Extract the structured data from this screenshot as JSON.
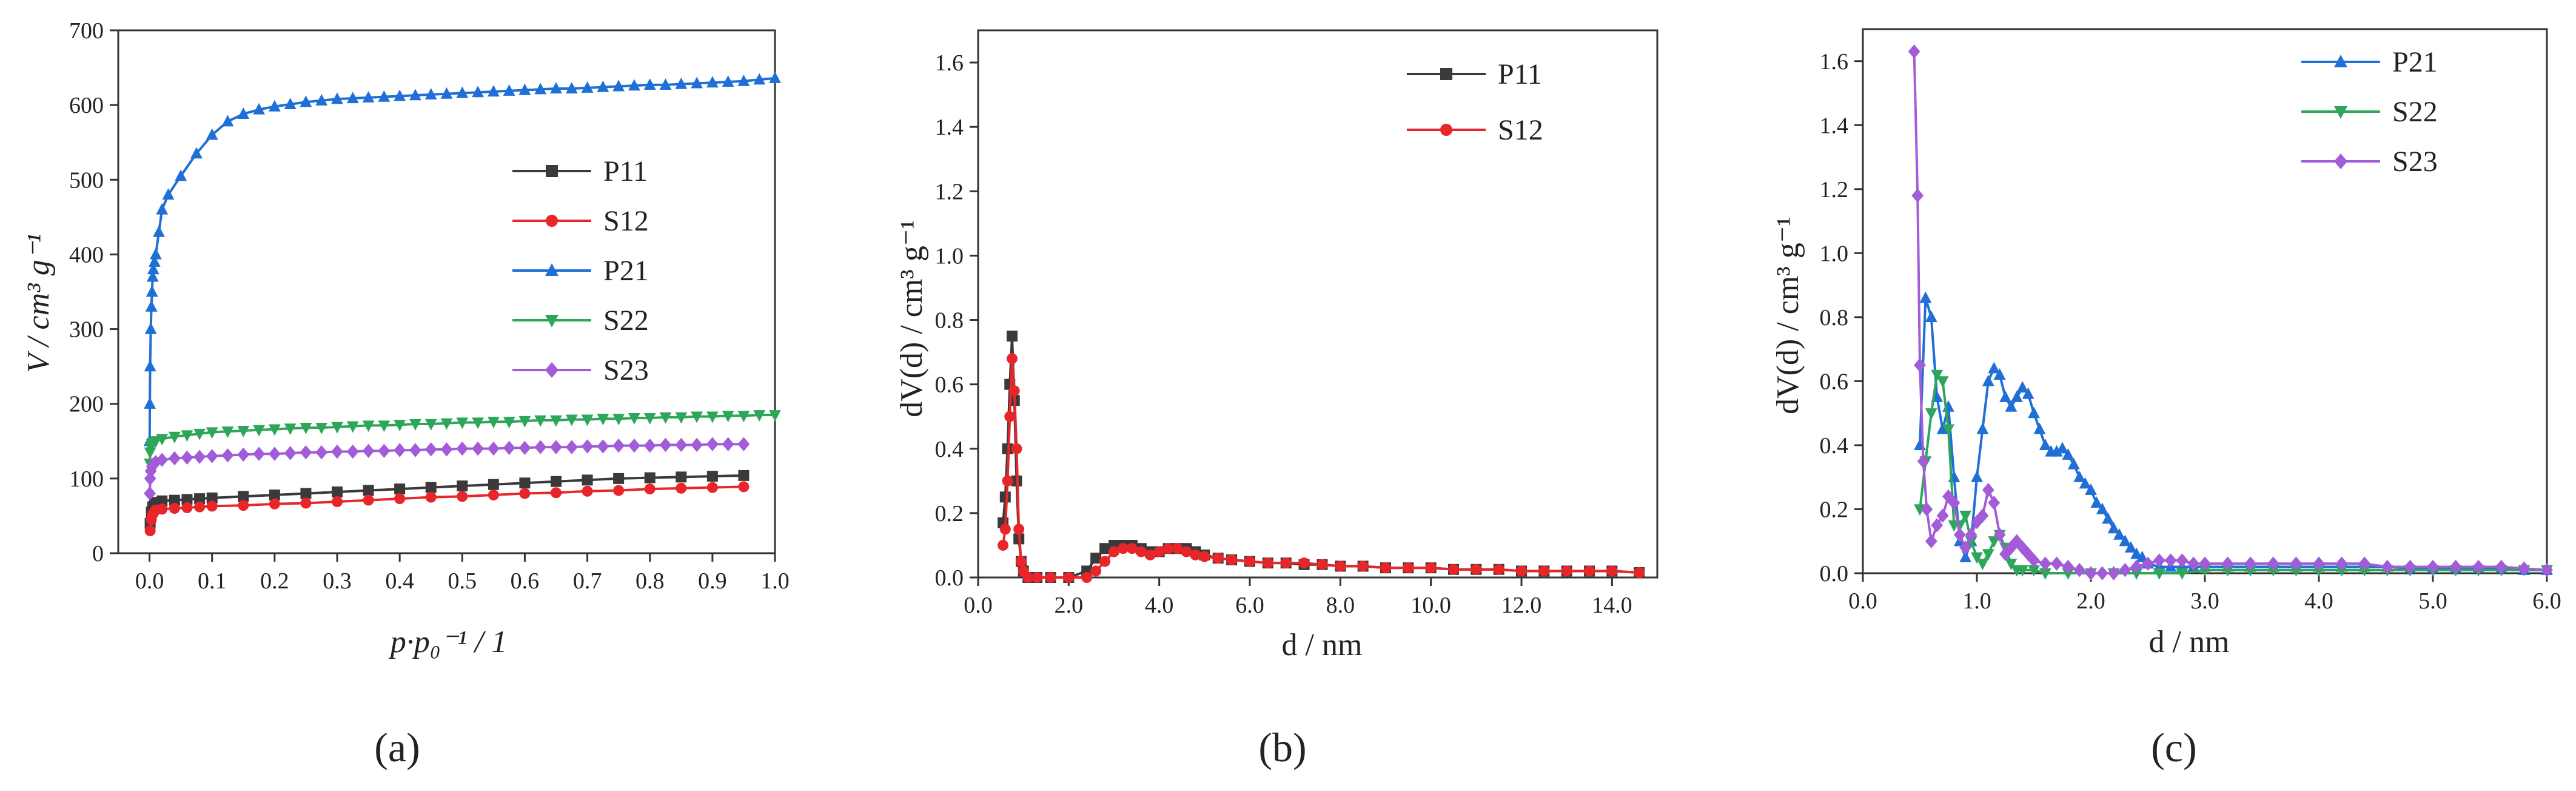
{
  "chart_data": [
    {
      "type": "line",
      "panel_label": "(a)",
      "xlabel": "p·p₀⁻¹ / 1",
      "ylabel": "V / cm³ g⁻¹",
      "xlim": [
        -0.05,
        1.0
      ],
      "ylim": [
        0,
        700
      ],
      "xticks": [
        "0.0",
        "0.1",
        "0.2",
        "0.3",
        "0.4",
        "0.5",
        "0.6",
        "0.7",
        "0.8",
        "0.9",
        "1.0"
      ],
      "yticks": [
        "0",
        "100",
        "200",
        "300",
        "400",
        "500",
        "600",
        "700"
      ],
      "legend": "center-right",
      "series": [
        {
          "name": "P11",
          "color": "#3a3a3a",
          "marker": "square",
          "x": [
            0.001,
            0.003,
            0.005,
            0.008,
            0.01,
            0.02,
            0.04,
            0.06,
            0.08,
            0.1,
            0.15,
            0.2,
            0.25,
            0.3,
            0.35,
            0.4,
            0.45,
            0.5,
            0.55,
            0.6,
            0.65,
            0.7,
            0.75,
            0.8,
            0.85,
            0.9,
            0.95
          ],
          "y": [
            40,
            55,
            62,
            66,
            68,
            70,
            71,
            72,
            73,
            74,
            76,
            78,
            80,
            82,
            84,
            86,
            88,
            90,
            92,
            94,
            96,
            98,
            100,
            101,
            102,
            103,
            104
          ]
        },
        {
          "name": "S12",
          "color": "#e8262a",
          "marker": "circle",
          "x": [
            0.001,
            0.003,
            0.005,
            0.008,
            0.01,
            0.02,
            0.04,
            0.06,
            0.08,
            0.1,
            0.15,
            0.2,
            0.25,
            0.3,
            0.35,
            0.4,
            0.45,
            0.5,
            0.55,
            0.6,
            0.65,
            0.7,
            0.75,
            0.8,
            0.85,
            0.9,
            0.95
          ],
          "y": [
            30,
            45,
            52,
            56,
            58,
            59,
            60,
            61,
            62,
            63,
            64,
            66,
            67,
            69,
            71,
            73,
            75,
            76,
            78,
            80,
            81,
            83,
            84,
            86,
            87,
            88,
            89
          ]
        },
        {
          "name": "P21",
          "color": "#1f6fd6",
          "marker": "triangle-up",
          "x": [
            0.0002,
            0.0005,
            0.001,
            0.002,
            0.003,
            0.004,
            0.005,
            0.006,
            0.008,
            0.01,
            0.015,
            0.02,
            0.03,
            0.05,
            0.075,
            0.1,
            0.125,
            0.15,
            0.175,
            0.2,
            0.225,
            0.25,
            0.275,
            0.3,
            0.325,
            0.35,
            0.375,
            0.4,
            0.425,
            0.45,
            0.475,
            0.5,
            0.525,
            0.55,
            0.575,
            0.6,
            0.625,
            0.65,
            0.675,
            0.7,
            0.725,
            0.75,
            0.775,
            0.8,
            0.825,
            0.85,
            0.875,
            0.9,
            0.925,
            0.95,
            0.975,
            1.0
          ],
          "y": [
            150,
            200,
            250,
            300,
            330,
            350,
            370,
            380,
            390,
            400,
            430,
            460,
            480,
            505,
            535,
            560,
            578,
            588,
            594,
            598,
            601,
            604,
            606,
            608,
            609,
            610,
            611,
            612,
            613,
            614,
            615,
            616,
            617,
            618,
            619,
            620,
            621,
            622,
            622,
            623,
            624,
            625,
            626,
            627,
            627,
            628,
            629,
            630,
            631,
            632,
            634,
            636
          ]
        },
        {
          "name": "S22",
          "color": "#2ea65a",
          "marker": "triangle-down",
          "x": [
            0.0005,
            0.001,
            0.002,
            0.004,
            0.006,
            0.01,
            0.02,
            0.04,
            0.06,
            0.08,
            0.1,
            0.125,
            0.15,
            0.175,
            0.2,
            0.225,
            0.25,
            0.275,
            0.3,
            0.325,
            0.35,
            0.375,
            0.4,
            0.425,
            0.45,
            0.475,
            0.5,
            0.525,
            0.55,
            0.575,
            0.6,
            0.625,
            0.65,
            0.675,
            0.7,
            0.725,
            0.75,
            0.775,
            0.8,
            0.825,
            0.85,
            0.875,
            0.9,
            0.925,
            0.95,
            0.975,
            1.0
          ],
          "y": [
            120,
            135,
            142,
            146,
            148,
            150,
            153,
            156,
            158,
            160,
            162,
            163,
            164,
            165,
            166,
            167,
            168,
            168,
            169,
            170,
            171,
            171,
            172,
            173,
            173,
            174,
            175,
            175,
            176,
            176,
            177,
            178,
            178,
            179,
            179,
            180,
            180,
            181,
            181,
            182,
            182,
            183,
            183,
            184,
            184,
            185,
            185
          ]
        },
        {
          "name": "S23",
          "color": "#a25cd8",
          "marker": "diamond",
          "x": [
            0.0005,
            0.001,
            0.002,
            0.004,
            0.006,
            0.01,
            0.02,
            0.04,
            0.06,
            0.08,
            0.1,
            0.125,
            0.15,
            0.175,
            0.2,
            0.225,
            0.25,
            0.275,
            0.3,
            0.325,
            0.35,
            0.375,
            0.4,
            0.425,
            0.45,
            0.475,
            0.5,
            0.525,
            0.55,
            0.575,
            0.6,
            0.625,
            0.65,
            0.675,
            0.7,
            0.725,
            0.75,
            0.775,
            0.8,
            0.825,
            0.85,
            0.875,
            0.9,
            0.925,
            0.95
          ],
          "y": [
            80,
            100,
            110,
            116,
            119,
            122,
            125,
            127,
            128,
            129,
            130,
            131,
            132,
            133,
            133,
            134,
            135,
            135,
            136,
            136,
            137,
            137,
            138,
            138,
            139,
            139,
            140,
            140,
            140,
            141,
            141,
            142,
            142,
            142,
            143,
            143,
            144,
            144,
            144,
            145,
            145,
            145,
            146,
            146,
            146
          ]
        }
      ]
    },
    {
      "type": "line",
      "panel_label": "(b)",
      "xlabel": "d / nm",
      "ylabel": "dV(d) / cm³ g⁻¹",
      "xlim": [
        0,
        15
      ],
      "ylim": [
        0,
        1.7
      ],
      "xticks": [
        "0.0",
        "2.0",
        "4.0",
        "6.0",
        "8.0",
        "10.0",
        "12.0",
        "14.0"
      ],
      "yticks": [
        "0.0",
        "0.2",
        "0.4",
        "0.6",
        "0.8",
        "1.0",
        "1.2",
        "1.4",
        "1.6"
      ],
      "legend": "top-right",
      "series": [
        {
          "name": "P11",
          "color": "#3a3a3a",
          "marker": "square",
          "x": [
            0.55,
            0.6,
            0.65,
            0.7,
            0.75,
            0.8,
            0.85,
            0.9,
            0.95,
            1.0,
            1.1,
            1.3,
            1.6,
            2.0,
            2.4,
            2.6,
            2.8,
            3.0,
            3.2,
            3.4,
            3.6,
            3.8,
            4.0,
            4.2,
            4.4,
            4.6,
            4.8,
            5.0,
            5.3,
            5.6,
            6.0,
            6.4,
            6.8,
            7.2,
            7.6,
            8.0,
            8.5,
            9.0,
            9.5,
            10.0,
            10.5,
            11.0,
            11.5,
            12.0,
            12.5,
            13.0,
            13.5,
            14.0,
            14.6
          ],
          "y": [
            0.17,
            0.25,
            0.4,
            0.6,
            0.75,
            0.55,
            0.3,
            0.12,
            0.05,
            0.02,
            0.0,
            0.0,
            0.0,
            0.0,
            0.02,
            0.06,
            0.09,
            0.1,
            0.1,
            0.1,
            0.09,
            0.08,
            0.08,
            0.09,
            0.09,
            0.09,
            0.08,
            0.07,
            0.06,
            0.055,
            0.05,
            0.045,
            0.045,
            0.04,
            0.04,
            0.035,
            0.035,
            0.03,
            0.03,
            0.03,
            0.025,
            0.025,
            0.025,
            0.02,
            0.02,
            0.02,
            0.02,
            0.02,
            0.015
          ]
        },
        {
          "name": "S12",
          "color": "#e8262a",
          "marker": "circle",
          "x": [
            0.55,
            0.6,
            0.65,
            0.7,
            0.75,
            0.8,
            0.85,
            0.9,
            0.95,
            1.0,
            1.1,
            1.3,
            1.6,
            2.0,
            2.4,
            2.6,
            2.8,
            3.0,
            3.2,
            3.4,
            3.6,
            3.8,
            4.0,
            4.2,
            4.4,
            4.6,
            4.8,
            5.0,
            5.3,
            5.6,
            6.0,
            6.4,
            6.8,
            7.2,
            7.6,
            8.0,
            8.5,
            9.0,
            9.5,
            10.0,
            10.5,
            11.0,
            11.5,
            12.0,
            12.5,
            13.0,
            13.5,
            14.0,
            14.6
          ],
          "y": [
            0.1,
            0.15,
            0.3,
            0.5,
            0.68,
            0.58,
            0.4,
            0.15,
            0.05,
            0.02,
            0.0,
            0.0,
            0.0,
            0.0,
            0.0,
            0.02,
            0.05,
            0.08,
            0.09,
            0.09,
            0.08,
            0.07,
            0.08,
            0.09,
            0.09,
            0.08,
            0.07,
            0.065,
            0.06,
            0.055,
            0.05,
            0.045,
            0.045,
            0.045,
            0.04,
            0.035,
            0.035,
            0.03,
            0.03,
            0.03,
            0.025,
            0.025,
            0.025,
            0.02,
            0.02,
            0.02,
            0.02,
            0.02,
            0.015
          ]
        }
      ]
    },
    {
      "type": "line",
      "panel_label": "(c)",
      "xlabel": "d / nm",
      "ylabel": "dV(d) / cm³ g⁻¹",
      "xlim": [
        0,
        6
      ],
      "ylim": [
        0,
        1.7
      ],
      "xticks": [
        "0.0",
        "1.0",
        "2.0",
        "3.0",
        "4.0",
        "5.0",
        "6.0"
      ],
      "yticks": [
        "0.0",
        "0.2",
        "0.4",
        "0.6",
        "0.8",
        "1.0",
        "1.2",
        "1.4",
        "1.6"
      ],
      "legend": "top-right",
      "series": [
        {
          "name": "P21",
          "color": "#1f6fd6",
          "marker": "triangle-up",
          "x": [
            0.5,
            0.55,
            0.6,
            0.65,
            0.7,
            0.75,
            0.8,
            0.85,
            0.9,
            0.95,
            1.0,
            1.05,
            1.1,
            1.15,
            1.2,
            1.25,
            1.3,
            1.35,
            1.4,
            1.45,
            1.5,
            1.55,
            1.6,
            1.65,
            1.7,
            1.75,
            1.8,
            1.85,
            1.9,
            1.95,
            2.0,
            2.05,
            2.1,
            2.15,
            2.2,
            2.25,
            2.3,
            2.35,
            2.4,
            2.45,
            2.5,
            2.6,
            2.7,
            2.8,
            2.9,
            3.0,
            3.2,
            3.4,
            3.6,
            3.8,
            4.0,
            4.2,
            4.4,
            4.6,
            4.8,
            5.0,
            5.2,
            5.4,
            5.6,
            5.8,
            6.0
          ],
          "y": [
            0.4,
            0.86,
            0.8,
            0.55,
            0.45,
            0.52,
            0.3,
            0.1,
            0.05,
            0.1,
            0.3,
            0.45,
            0.6,
            0.64,
            0.62,
            0.55,
            0.52,
            0.55,
            0.58,
            0.56,
            0.5,
            0.45,
            0.4,
            0.38,
            0.38,
            0.39,
            0.37,
            0.34,
            0.3,
            0.28,
            0.26,
            0.22,
            0.2,
            0.17,
            0.14,
            0.12,
            0.1,
            0.08,
            0.06,
            0.05,
            0.03,
            0.02,
            0.02,
            0.02,
            0.02,
            0.02,
            0.02,
            0.02,
            0.02,
            0.02,
            0.02,
            0.02,
            0.02,
            0.02,
            0.015,
            0.015,
            0.015,
            0.015,
            0.015,
            0.01,
            0.01
          ]
        },
        {
          "name": "S22",
          "color": "#2ea65a",
          "marker": "triangle-down",
          "x": [
            0.5,
            0.55,
            0.6,
            0.65,
            0.7,
            0.75,
            0.8,
            0.85,
            0.9,
            0.95,
            1.0,
            1.05,
            1.1,
            1.15,
            1.2,
            1.25,
            1.3,
            1.35,
            1.4,
            1.5,
            1.6,
            1.8,
            2.0,
            2.2,
            2.4,
            2.6,
            2.8,
            3.0,
            3.2,
            3.4,
            3.6,
            3.8,
            4.0,
            4.2,
            4.4,
            4.6,
            4.8,
            5.0,
            5.2,
            5.4,
            5.6,
            5.8,
            6.0
          ],
          "y": [
            0.2,
            0.35,
            0.5,
            0.62,
            0.6,
            0.45,
            0.15,
            0.15,
            0.18,
            0.1,
            0.05,
            0.03,
            0.06,
            0.1,
            0.12,
            0.08,
            0.03,
            0.01,
            0.01,
            0.01,
            0.0,
            0.0,
            0.0,
            0.0,
            0.0,
            0.0,
            0.0,
            0.01,
            0.01,
            0.01,
            0.01,
            0.01,
            0.01,
            0.01,
            0.01,
            0.01,
            0.01,
            0.01,
            0.01,
            0.01,
            0.01,
            0.01,
            0.01
          ]
        },
        {
          "name": "S23",
          "color": "#a25cd8",
          "marker": "diamond",
          "x": [
            0.45,
            0.48,
            0.5,
            0.53,
            0.56,
            0.6,
            0.65,
            0.7,
            0.75,
            0.8,
            0.85,
            0.9,
            0.95,
            1.0,
            1.05,
            1.1,
            1.15,
            1.2,
            1.25,
            1.3,
            1.35,
            1.4,
            1.45,
            1.5,
            1.6,
            1.7,
            1.8,
            1.9,
            2.0,
            2.1,
            2.2,
            2.3,
            2.4,
            2.5,
            2.6,
            2.7,
            2.8,
            2.9,
            3.0,
            3.2,
            3.4,
            3.6,
            3.8,
            4.0,
            4.2,
            4.4,
            4.6,
            4.8,
            5.0,
            5.2,
            5.4,
            5.6,
            5.8,
            6.0
          ],
          "y": [
            1.63,
            1.18,
            0.65,
            0.35,
            0.2,
            0.1,
            0.15,
            0.18,
            0.24,
            0.22,
            0.12,
            0.08,
            0.12,
            0.16,
            0.18,
            0.26,
            0.22,
            0.12,
            0.06,
            0.08,
            0.1,
            0.08,
            0.06,
            0.04,
            0.03,
            0.03,
            0.02,
            0.01,
            0.0,
            0.0,
            0.0,
            0.01,
            0.02,
            0.03,
            0.04,
            0.04,
            0.04,
            0.03,
            0.03,
            0.03,
            0.03,
            0.03,
            0.03,
            0.03,
            0.03,
            0.03,
            0.02,
            0.02,
            0.02,
            0.02,
            0.02,
            0.02,
            0.015,
            0.01
          ]
        }
      ]
    }
  ]
}
